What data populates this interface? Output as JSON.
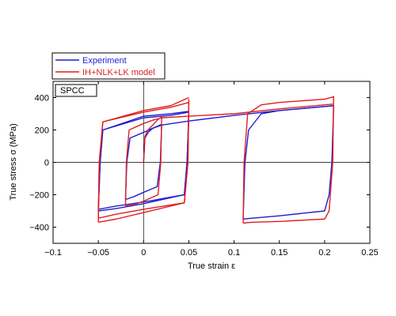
{
  "chart_data": {
    "type": "line",
    "xlabel": "True strain ε",
    "ylabel": "True stress σ (MPa)",
    "xlim": [
      -0.1,
      0.25
    ],
    "ylim": [
      -500,
      500
    ],
    "x_ticks": [
      "−0.1",
      "−0.05",
      "0",
      "0.05",
      "0.1",
      "0.15",
      "0.2",
      "0.25"
    ],
    "y_ticks": [
      "−400",
      "−200",
      "0",
      "200",
      "400"
    ],
    "x_tick_values": [
      -0.1,
      -0.05,
      0,
      0.05,
      0.1,
      0.15,
      0.2,
      0.25
    ],
    "y_tick_values": [
      -400,
      -200,
      0,
      200,
      400
    ],
    "annotation": "SPCC",
    "legend": {
      "placement": "top-left-outside"
    },
    "series": [
      {
        "name": "Experiment",
        "color": "#1f1fd0",
        "curves": [
          {
            "x": [
              0,
              0.0015,
              0.005,
              0.01,
              0.016,
              0.02
            ],
            "y": [
              0,
              150,
              185,
              210,
              225,
              235
            ]
          },
          {
            "x": [
              0.02,
              0.0185,
              0.015,
              0.0,
              -0.01,
              -0.02
            ],
            "y": [
              235,
              0,
              -150,
              -185,
              -210,
              -230
            ]
          },
          {
            "x": [
              -0.02,
              -0.0185,
              -0.015,
              0.0,
              0.01,
              0.02
            ],
            "y": [
              -230,
              0,
              150,
              185,
              210,
              230
            ]
          },
          {
            "x": [
              0.02,
              0.05,
              0.1,
              0.15,
              0.2,
              0.21
            ],
            "y": [
              230,
              255,
              290,
              320,
              345,
              350
            ]
          },
          {
            "x": [
              0.21,
              0.208,
              0.205,
              0.2,
              0.15,
              0.12,
              0.11
            ],
            "y": [
              350,
              0,
              -200,
              -300,
              -330,
              -345,
              -350
            ]
          },
          {
            "x": [
              0.11,
              0.112,
              0.116,
              0.13,
              0.15,
              0.2,
              0.21
            ],
            "y": [
              -350,
              0,
              200,
              300,
              320,
              345,
              350
            ]
          },
          {
            "x": [
              0.05,
              0.048,
              0.045,
              0.0,
              -0.03,
              -0.05
            ],
            "y": [
              300,
              0,
              -200,
              -255,
              -285,
              -300
            ]
          },
          {
            "x": [
              -0.05,
              -0.048,
              -0.045,
              0.0,
              0.03,
              0.05
            ],
            "y": [
              -300,
              0,
              200,
              275,
              290,
              310
            ]
          },
          {
            "x": [
              0.05,
              0.048,
              0.045,
              0.0,
              -0.03,
              -0.05
            ],
            "y": [
              310,
              0,
              -200,
              -245,
              -270,
              -290
            ]
          },
          {
            "x": [
              -0.05,
              -0.048,
              -0.045,
              0.0,
              0.03,
              0.05
            ],
            "y": [
              -290,
              0,
              200,
              285,
              300,
              315
            ]
          }
        ]
      },
      {
        "name": "IH+NLK+LK model",
        "color": "#e01e1e",
        "curves": [
          {
            "x": [
              0,
              0.0015,
              0.005,
              0.01,
              0.016,
              0.02
            ],
            "y": [
              0,
              160,
              200,
              230,
              265,
              280
            ]
          },
          {
            "x": [
              0.02,
              0.019,
              0.016,
              0.0,
              -0.01,
              -0.02
            ],
            "y": [
              280,
              0,
              -200,
              -240,
              -260,
              -270
            ]
          },
          {
            "x": [
              -0.02,
              -0.019,
              -0.016,
              0.0,
              0.01,
              0.02
            ],
            "y": [
              -270,
              0,
              200,
              240,
              260,
              275
            ]
          },
          {
            "x": [
              0.02,
              0.05,
              0.1,
              0.15,
              0.2,
              0.21
            ],
            "y": [
              275,
              285,
              300,
              330,
              355,
              360
            ]
          },
          {
            "x": [
              0.21,
              0.209,
              0.205,
              0.2,
              0.15,
              0.12,
              0.11
            ],
            "y": [
              410,
              0,
              -300,
              -350,
              -365,
              -370,
              -375
            ]
          },
          {
            "x": [
              0.11,
              0.111,
              0.115,
              0.13,
              0.15,
              0.2,
              0.21
            ],
            "y": [
              -375,
              0,
              300,
              355,
              370,
              390,
              405
            ]
          },
          {
            "x": [
              0.05,
              0.049,
              0.045,
              0.0,
              -0.03,
              -0.05
            ],
            "y": [
              390,
              0,
              -250,
              -310,
              -350,
              -370
            ]
          },
          {
            "x": [
              -0.05,
              -0.049,
              -0.045,
              0.0,
              0.03,
              0.05
            ],
            "y": [
              -370,
              0,
              250,
              310,
              340,
              370
            ]
          },
          {
            "x": [
              0.05,
              0.049,
              0.045,
              0.0,
              -0.03,
              -0.05
            ],
            "y": [
              370,
              0,
              -250,
              -290,
              -320,
              -345
            ]
          },
          {
            "x": [
              -0.05,
              -0.049,
              -0.045,
              0.0,
              0.03,
              0.05
            ],
            "y": [
              -345,
              0,
              250,
              320,
              350,
              400
            ]
          }
        ]
      }
    ]
  }
}
